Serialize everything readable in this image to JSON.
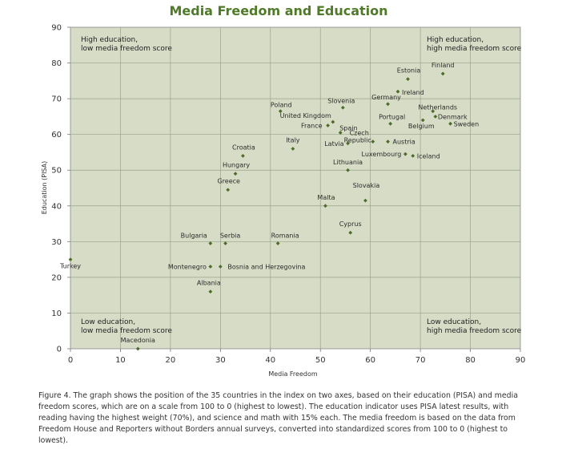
{
  "chart_data": {
    "type": "scatter",
    "title": "Media Freedom and Education",
    "xlabel": "Media Freedom",
    "ylabel": "Education (PISA)",
    "xlim": [
      0,
      90
    ],
    "ylim": [
      0,
      90
    ],
    "xticks": [
      0,
      10,
      20,
      30,
      40,
      50,
      60,
      70,
      80,
      90
    ],
    "yticks": [
      0,
      10,
      20,
      30,
      40,
      50,
      60,
      70,
      80,
      90
    ],
    "grid": true,
    "marker_color": "#4e6b2a",
    "background_color": "#d6dcc6",
    "corner_labels": {
      "top_left": [
        "High education,",
        "low media freedom score"
      ],
      "top_right": [
        "High education,",
        "high media freedom score"
      ],
      "bottom_left": [
        "Low education,",
        "low media freedom score"
      ],
      "bottom_right": [
        "Low education,",
        "high media freedom score"
      ]
    },
    "points": [
      {
        "label": "Finland",
        "x": 74.5,
        "y": 77
      },
      {
        "label": "Estonia",
        "x": 67.5,
        "y": 75.5
      },
      {
        "label": "Ireland",
        "x": 65.5,
        "y": 72
      },
      {
        "label": "Germany",
        "x": 63.5,
        "y": 68.5
      },
      {
        "label": "Slovenia",
        "x": 54.5,
        "y": 67.5
      },
      {
        "label": "Netherlands",
        "x": 72.5,
        "y": 66.5
      },
      {
        "label": "Denmark",
        "x": 73,
        "y": 65
      },
      {
        "label": "Poland",
        "x": 42,
        "y": 66.5
      },
      {
        "label": "Portugal",
        "x": 64,
        "y": 63
      },
      {
        "label": "Belgium",
        "x": 70.5,
        "y": 64
      },
      {
        "label": "Sweden",
        "x": 76,
        "y": 63
      },
      {
        "label": "United Kingdom",
        "x": 52.5,
        "y": 63.5
      },
      {
        "label": "France",
        "x": 51.5,
        "y": 62.5
      },
      {
        "label": "Spain",
        "x": 54,
        "y": 60.5
      },
      {
        "label": "Czech Republic",
        "x": 60.5,
        "y": 58
      },
      {
        "label": "Austria",
        "x": 63.5,
        "y": 58
      },
      {
        "label": "Latvia",
        "x": 55.5,
        "y": 57.5
      },
      {
        "label": "Italy",
        "x": 44.5,
        "y": 56
      },
      {
        "label": "Luxembourg",
        "x": 67,
        "y": 54.5
      },
      {
        "label": "Iceland",
        "x": 68.5,
        "y": 54
      },
      {
        "label": "Croatia",
        "x": 34.5,
        "y": 54
      },
      {
        "label": "Lithuania",
        "x": 55.5,
        "y": 50
      },
      {
        "label": "Hungary",
        "x": 33,
        "y": 49
      },
      {
        "label": "Greece",
        "x": 31.5,
        "y": 44.5
      },
      {
        "label": "Slovakia",
        "x": 59,
        "y": 41.5
      },
      {
        "label": "Malta",
        "x": 51,
        "y": 40
      },
      {
        "label": "Cyprus",
        "x": 56,
        "y": 32.5
      },
      {
        "label": "Bulgaria",
        "x": 28,
        "y": 29.5
      },
      {
        "label": "Serbia",
        "x": 31,
        "y": 29.5
      },
      {
        "label": "Romania",
        "x": 41.5,
        "y": 29.5
      },
      {
        "label": "Turkey",
        "x": 0,
        "y": 25
      },
      {
        "label": "Montenegro",
        "x": 28,
        "y": 23
      },
      {
        "label": "Bosnia and Herzegovina",
        "x": 30,
        "y": 23
      },
      {
        "label": "Albania",
        "x": 28,
        "y": 16
      },
      {
        "label": "Macedonia",
        "x": 13.5,
        "y": 0
      }
    ]
  },
  "caption": "Figure 4. The graph shows the position of the 35 countries in the index on two axes, based on their education (PISA) and media freedom scores, which are on a scale from 100 to 0 (highest to lowest). The education indicator uses PISA latest results, with reading having the highest weight (70%), and science and math with 15% each. The media freedom is based on the data from Freedom House and Reporters without Borders annual surveys, converted into standardized scores from 100 to 0 (highest to lowest)."
}
